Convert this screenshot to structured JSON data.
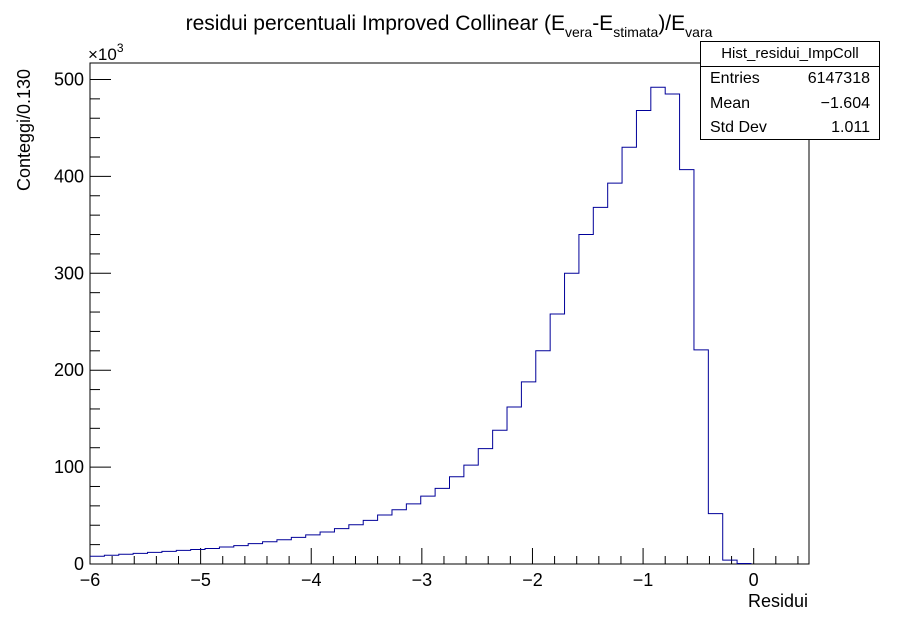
{
  "chart_data": {
    "type": "bar",
    "title": {
      "main": "residui percentuali Improved Collinear (E",
      "sub1": "vera",
      "mid1": "-E",
      "sub2": "stimata",
      "mid2": ")/E",
      "sub3": "vara"
    },
    "xlabel": "Residui",
    "ylabel": "Conteggi/0.130",
    "y_multiplier": "×10",
    "y_multiplier_exp": "3",
    "xlim": [
      -6,
      0.5
    ],
    "ylim": [
      0,
      517000
    ],
    "x_ticks": [
      -6,
      -5,
      -4,
      -3,
      -2,
      -1,
      0
    ],
    "x_tick_labels": [
      "−6",
      "−5",
      "−4",
      "−3",
      "−2",
      "−1",
      "0"
    ],
    "y_ticks": [
      0,
      100000,
      200000,
      300000,
      400000,
      500000
    ],
    "y_tick_labels": [
      "0",
      "100",
      "200",
      "300",
      "400",
      "500"
    ],
    "bin_start": -6,
    "bin_width": 0.13,
    "values": [
      8000,
      9000,
      10000,
      11000,
      12000,
      13000,
      14000,
      15000,
      16000,
      17500,
      19000,
      21000,
      23000,
      25000,
      27500,
      30000,
      33000,
      36500,
      40500,
      45000,
      50500,
      56000,
      62000,
      70000,
      78000,
      90000,
      102000,
      119000,
      138000,
      162000,
      188000,
      220000,
      258000,
      300000,
      340000,
      368000,
      393000,
      430000,
      468000,
      492000,
      485000,
      407000,
      221000,
      52000,
      4000,
      500
    ],
    "line_color": "#000099",
    "stats": {
      "name": "Hist_residui_ImpColl",
      "rows": [
        {
          "label": "Entries",
          "value": "6147318"
        },
        {
          "label": "Mean",
          "value": "−1.604"
        },
        {
          "label": "Std Dev",
          "value": "1.011"
        }
      ]
    }
  }
}
